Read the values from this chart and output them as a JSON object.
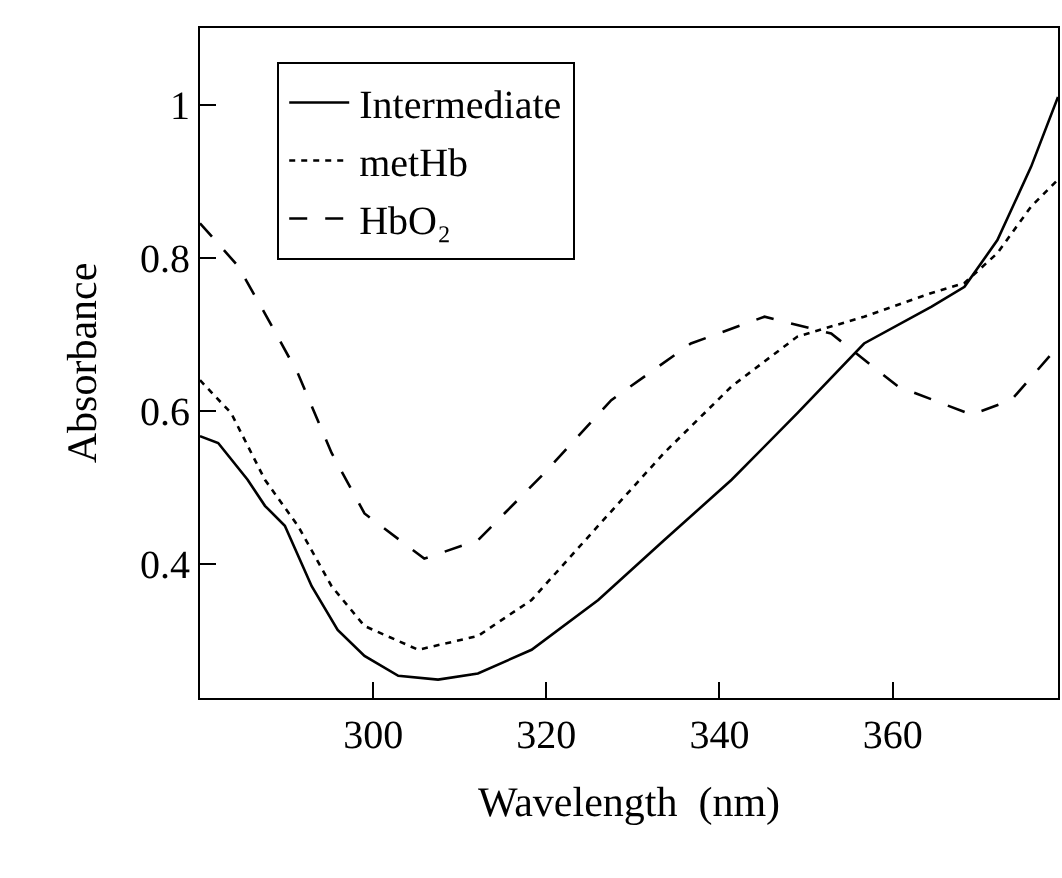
{
  "chart_data": {
    "type": "line",
    "xlabel": "Wavelength  (nm)",
    "ylabel": "Absorbance",
    "xlim": [
      280,
      379.1
    ],
    "ylim": [
      0.225,
      1.1
    ],
    "xticks": [
      300,
      320,
      340,
      360
    ],
    "yticks": [
      0.4,
      0.6,
      0.8,
      1
    ],
    "legend": "top left",
    "marker": "none",
    "series": [
      {
        "name": "Intermediate",
        "color": "#000000",
        "line_style": "solid",
        "x": [
          280,
          282.1,
          285.5,
          287.5,
          289.8,
          292.9,
          295.9,
          299,
          302.9,
          307.5,
          312.1,
          318.3,
          326,
          333.6,
          341.4,
          349,
          356.7,
          364.5,
          368.3,
          372.1,
          376,
          379.1
        ],
        "values": [
          0.567,
          0.558,
          0.51,
          0.476,
          0.45,
          0.371,
          0.314,
          0.28,
          0.254,
          0.249,
          0.257,
          0.288,
          0.353,
          0.431,
          0.51,
          0.597,
          0.688,
          0.736,
          0.762,
          0.823,
          0.919,
          1.01
        ]
      },
      {
        "name": "metHb",
        "color": "#000000",
        "line_style": "dotted",
        "x": [
          280,
          283.6,
          287.5,
          291.3,
          295.2,
          299,
          305.2,
          312.1,
          318.3,
          326,
          333.6,
          341.4,
          349,
          356.7,
          364.5,
          368.3,
          372.1,
          376,
          379.1
        ],
        "values": [
          0.64,
          0.597,
          0.51,
          0.45,
          0.371,
          0.319,
          0.288,
          0.306,
          0.353,
          0.45,
          0.545,
          0.632,
          0.697,
          0.723,
          0.754,
          0.767,
          0.806,
          0.867,
          0.902
        ]
      },
      {
        "name": "HbO₂",
        "color": "#000000",
        "line_style": "dashed",
        "x": [
          280,
          284.4,
          287.5,
          291.3,
          295.2,
          299,
          305.9,
          312.1,
          319.8,
          327.5,
          336.7,
          345.2,
          352.9,
          360.6,
          369.1,
          373.7,
          379.1
        ],
        "values": [
          0.845,
          0.789,
          0.727,
          0.649,
          0.545,
          0.466,
          0.407,
          0.431,
          0.519,
          0.614,
          0.688,
          0.723,
          0.701,
          0.632,
          0.595,
          0.614,
          0.684
        ]
      }
    ]
  }
}
